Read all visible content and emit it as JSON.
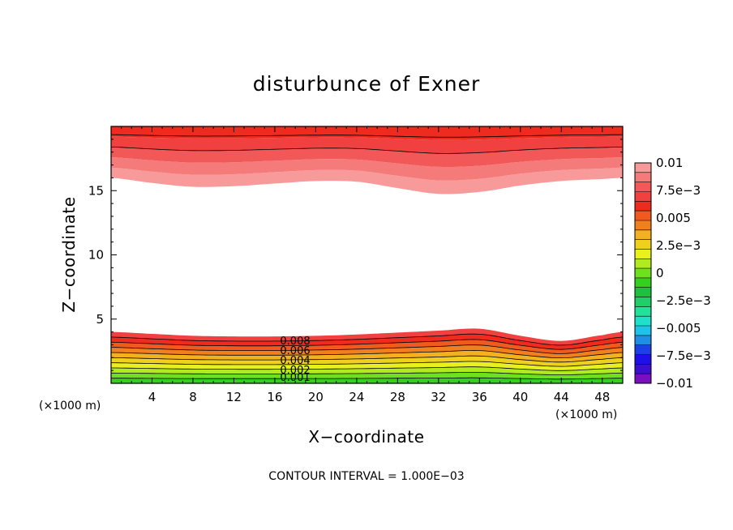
{
  "chart_data": {
    "type": "contour",
    "title": "disturbunce of Exner",
    "xlabel": "X−coordinate",
    "ylabel": "Z−coordinate",
    "x_unit": "(×1000 m)",
    "y_unit": "(×1000 m)",
    "xlim": [
      0,
      50
    ],
    "ylim": [
      0,
      20
    ],
    "x_ticks": [
      4,
      8,
      12,
      16,
      20,
      24,
      28,
      32,
      36,
      40,
      44,
      48
    ],
    "y_ticks": [
      5,
      10,
      15
    ],
    "contour_interval_text": "CONTOUR INTERVAL = 1.000E−03",
    "colorbar": {
      "labels": [
        "0.01",
        "7.5e−3",
        "0.005",
        "2.5e−3",
        "0",
        "−2.5e−3",
        "−0.005",
        "−7.5e−3",
        "−0.01"
      ],
      "levels_low_to_high": [
        -0.01,
        -0.009,
        -0.008,
        -0.007,
        -0.006,
        -0.005,
        -0.004,
        -0.003,
        -0.002,
        -0.001,
        0,
        0.001,
        0.002,
        0.003,
        0.004,
        0.005,
        0.006,
        0.007,
        0.008,
        0.009,
        0.01
      ],
      "colors_low_to_high": [
        "#7a0fbf",
        "#3a0fcf",
        "#1f0fe8",
        "#1f3fe6",
        "#1f8fe6",
        "#1fc2e8",
        "#1fe0c8",
        "#1fe39a",
        "#1fd06a",
        "#1fc040",
        "#33d01f",
        "#6fe01f",
        "#b0ea1f",
        "#e8f01f",
        "#f0d01f",
        "#f3b01f",
        "#f0801f",
        "#f05a1f",
        "#ef2a1f",
        "#f04040",
        "#f35858",
        "#f57a7a",
        "#f99a9a"
      ]
    },
    "lower_band": {
      "x": [
        0,
        4,
        8,
        12,
        16,
        20,
        24,
        28,
        32,
        36,
        40,
        44,
        48,
        50
      ],
      "top_height": [
        4.0,
        3.85,
        3.7,
        3.65,
        3.65,
        3.7,
        3.8,
        3.95,
        4.1,
        4.25,
        3.7,
        3.3,
        3.75,
        4.0
      ],
      "levels_from_ground": [
        0.001,
        0.002,
        0.003,
        0.004,
        0.005,
        0.006,
        0.007,
        0.008,
        0.009,
        0.01
      ]
    },
    "upper_band": {
      "x": [
        0,
        4,
        8,
        12,
        16,
        20,
        24,
        28,
        32,
        36,
        40,
        44,
        48,
        50
      ],
      "bottom_height": [
        16.0,
        15.6,
        15.3,
        15.35,
        15.55,
        15.75,
        15.7,
        15.2,
        14.75,
        14.9,
        15.4,
        15.75,
        15.9,
        16.0
      ],
      "colors_bottom_to_top": [
        "#f99a9a",
        "#f57a7a",
        "#f35858",
        "#f04040",
        "#ef2a1f"
      ]
    },
    "contour_labels": [
      "0.008",
      "0.006",
      "0.004",
      "0.002",
      "0.001"
    ]
  }
}
